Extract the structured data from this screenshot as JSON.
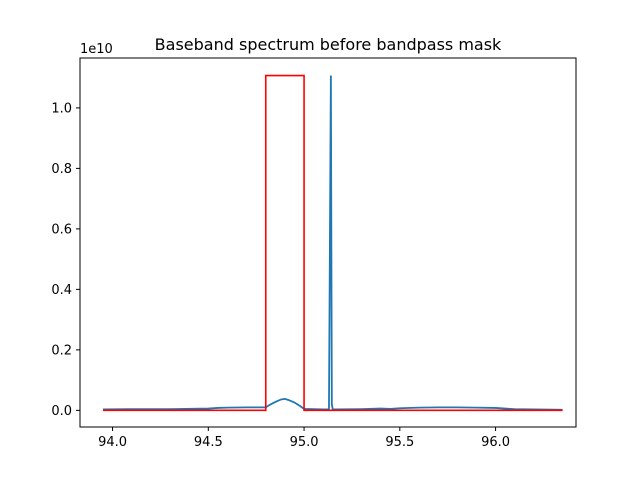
{
  "chart_data": {
    "type": "line",
    "title": "Baseband spectrum before bandpass mask",
    "xlabel": "",
    "ylabel": "",
    "y_offset_label": "1e10",
    "xlim": [
      93.83,
      96.42
    ],
    "ylim": [
      -0.055,
      1.165
    ],
    "x_ticks": [
      94.0,
      94.5,
      95.0,
      95.5,
      96.0
    ],
    "x_tick_labels": [
      "94.0",
      "94.5",
      "95.0",
      "95.5",
      "96.0"
    ],
    "y_ticks": [
      0.0,
      0.2,
      0.4,
      0.6,
      0.8,
      1.0
    ],
    "y_tick_labels": [
      "0.0",
      "0.2",
      "0.4",
      "0.6",
      "0.8",
      "1.0"
    ],
    "grid": false,
    "series": [
      {
        "color": "#1f77b4",
        "x": [
          93.95,
          94.1,
          94.3,
          94.5,
          94.55,
          94.6,
          94.7,
          94.75,
          94.8,
          94.82,
          94.85,
          94.88,
          94.9,
          94.92,
          94.95,
          94.98,
          95.0,
          95.1,
          95.13,
          95.14,
          95.145,
          95.15,
          95.3,
          95.4,
          95.45,
          95.5,
          95.6,
          95.7,
          95.8,
          95.9,
          96.0,
          96.1,
          96.2,
          96.35
        ],
        "y": [
          0.003,
          0.004,
          0.004,
          0.006,
          0.008,
          0.009,
          0.01,
          0.01,
          0.01,
          0.018,
          0.028,
          0.036,
          0.038,
          0.034,
          0.026,
          0.014,
          0.005,
          0.003,
          0.003,
          1.107,
          0.02,
          0.003,
          0.004,
          0.006,
          0.005,
          0.007,
          0.009,
          0.01,
          0.01,
          0.009,
          0.008,
          0.004,
          0.003,
          0.002
        ]
      },
      {
        "color": "#ff0000",
        "x": [
          93.95,
          94.8,
          94.8,
          95.0,
          95.0,
          96.35
        ],
        "y": [
          0.0,
          0.0,
          1.107,
          1.107,
          0.0,
          0.0
        ]
      }
    ]
  }
}
